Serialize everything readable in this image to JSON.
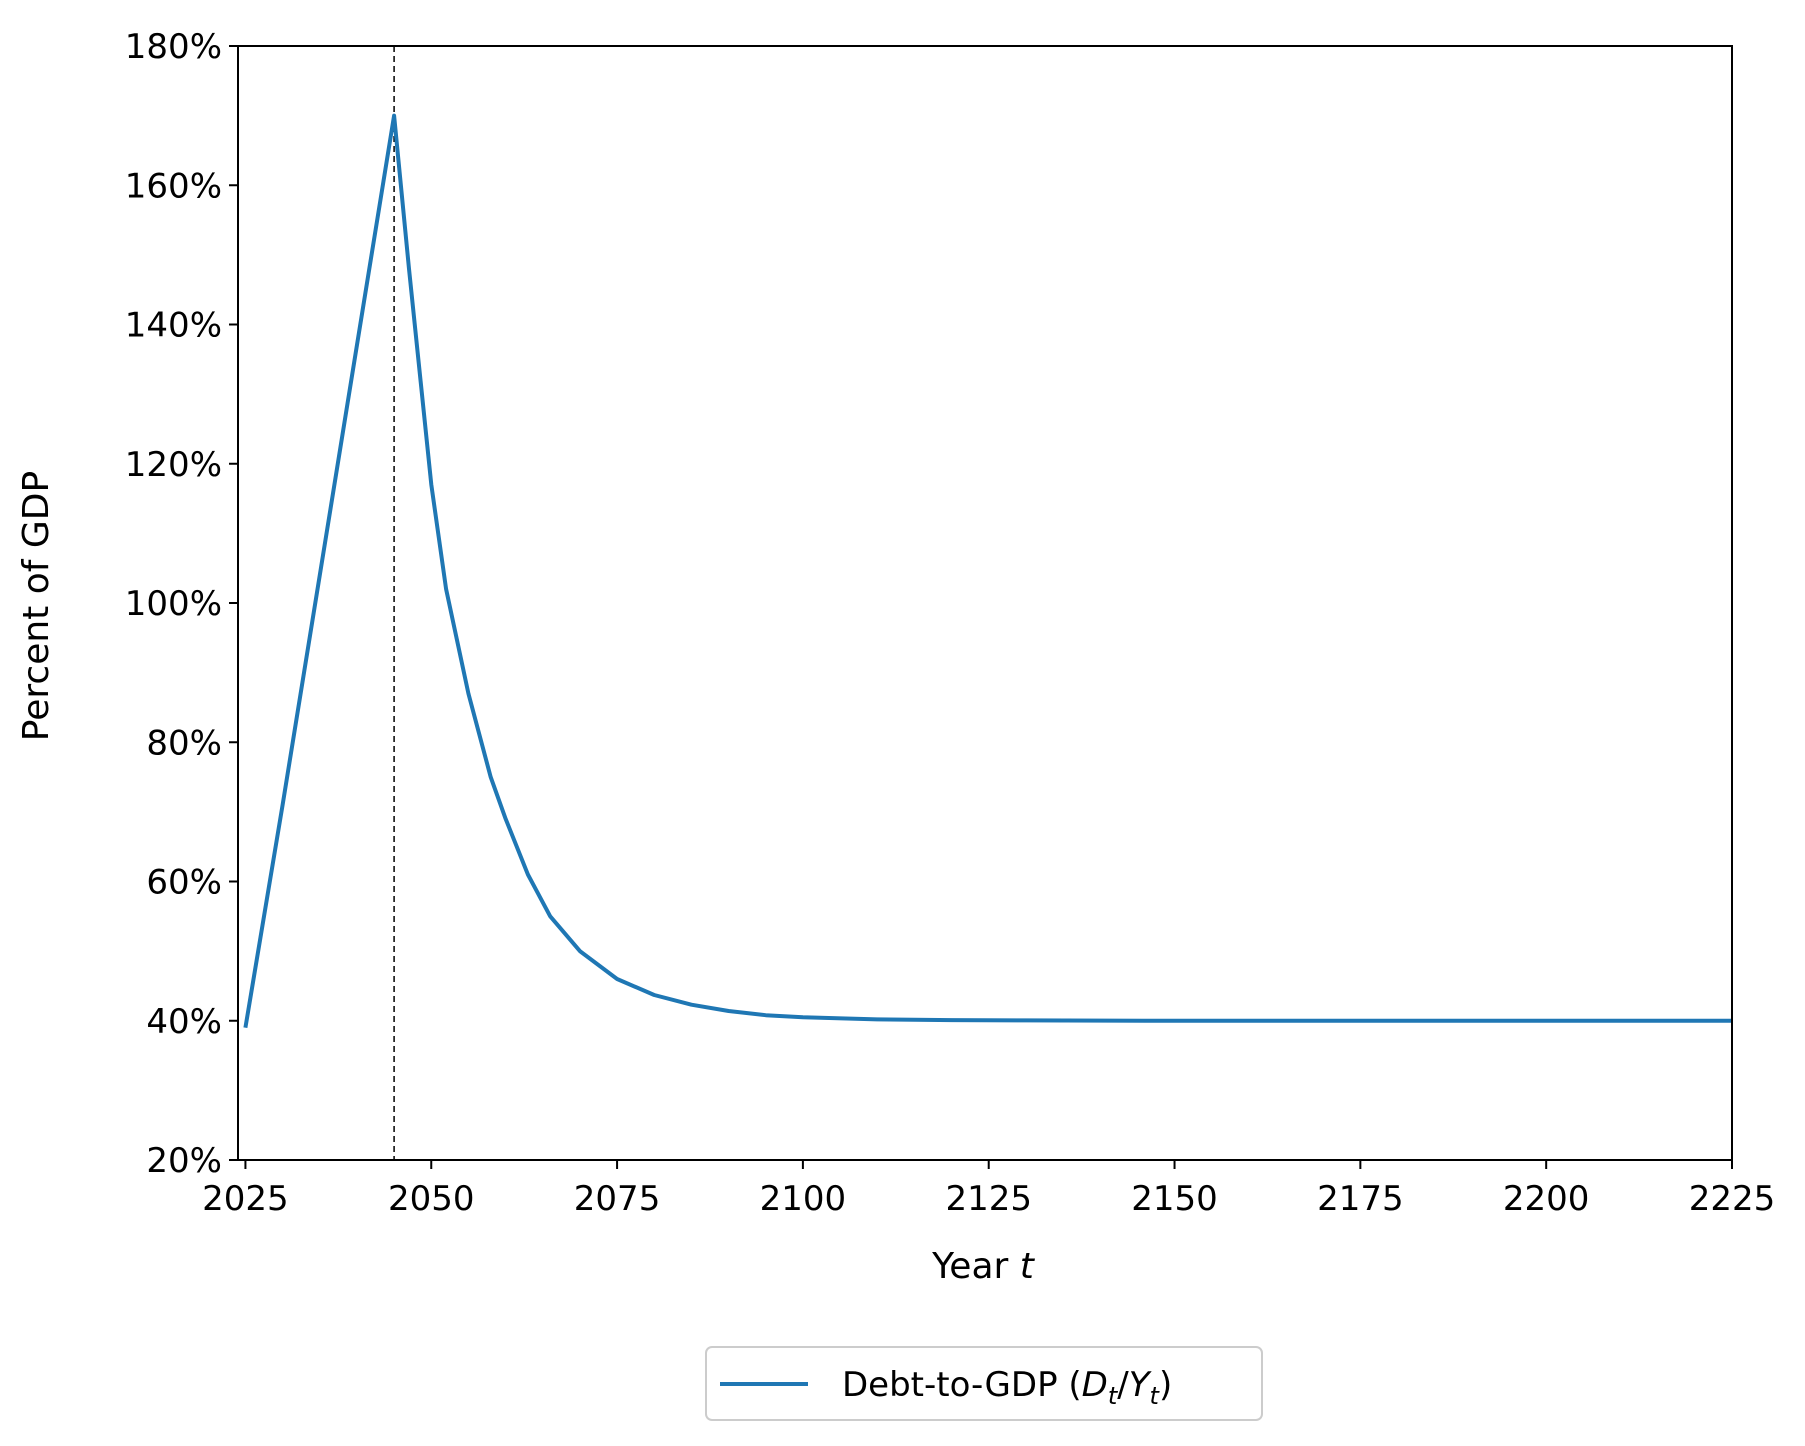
{
  "chart_data": {
    "type": "line",
    "xlabel": "Year",
    "xlabel_var": "t",
    "ylabel": "Percent of GDP",
    "xlim": [
      2024,
      2225
    ],
    "ylim": [
      20,
      180
    ],
    "x_ticks": [
      2025,
      2050,
      2075,
      2100,
      2125,
      2150,
      2175,
      2200,
      2225
    ],
    "y_ticks": [
      20,
      40,
      60,
      80,
      100,
      120,
      140,
      160,
      180
    ],
    "y_tick_labels": [
      "20%",
      "40%",
      "60%",
      "80%",
      "100%",
      "120%",
      "140%",
      "160%",
      "180%"
    ],
    "x_tick_labels": [
      "2025",
      "2050",
      "2075",
      "2100",
      "2125",
      "2150",
      "2175",
      "2200",
      "2225"
    ],
    "grid": false,
    "legend_position": "bottom-center",
    "vline": {
      "x": 2045,
      "style": "dashed",
      "color": "#000000"
    },
    "series": [
      {
        "name": "Debt-to-GDP (D_t/Y_t)",
        "legend": {
          "prefix": "Debt-to-GDP (",
          "v1": "D",
          "s1": "t",
          "sep": "/",
          "v2": "Y",
          "s2": "t",
          "suffix": ")"
        },
        "color": "#1f77b4",
        "x": [
          2025,
          2030,
          2035,
          2040,
          2045,
          2047,
          2050,
          2052,
          2055,
          2058,
          2060,
          2063,
          2066,
          2070,
          2075,
          2080,
          2085,
          2090,
          2095,
          2100,
          2110,
          2120,
          2130,
          2150,
          2175,
          2200,
          2225
        ],
        "y": [
          39,
          71,
          104,
          137,
          170,
          148,
          117,
          102,
          87,
          75,
          69,
          61,
          55,
          50,
          46,
          43.7,
          42.3,
          41.4,
          40.8,
          40.5,
          40.2,
          40.1,
          40.05,
          40,
          40,
          40,
          40
        ]
      }
    ]
  }
}
